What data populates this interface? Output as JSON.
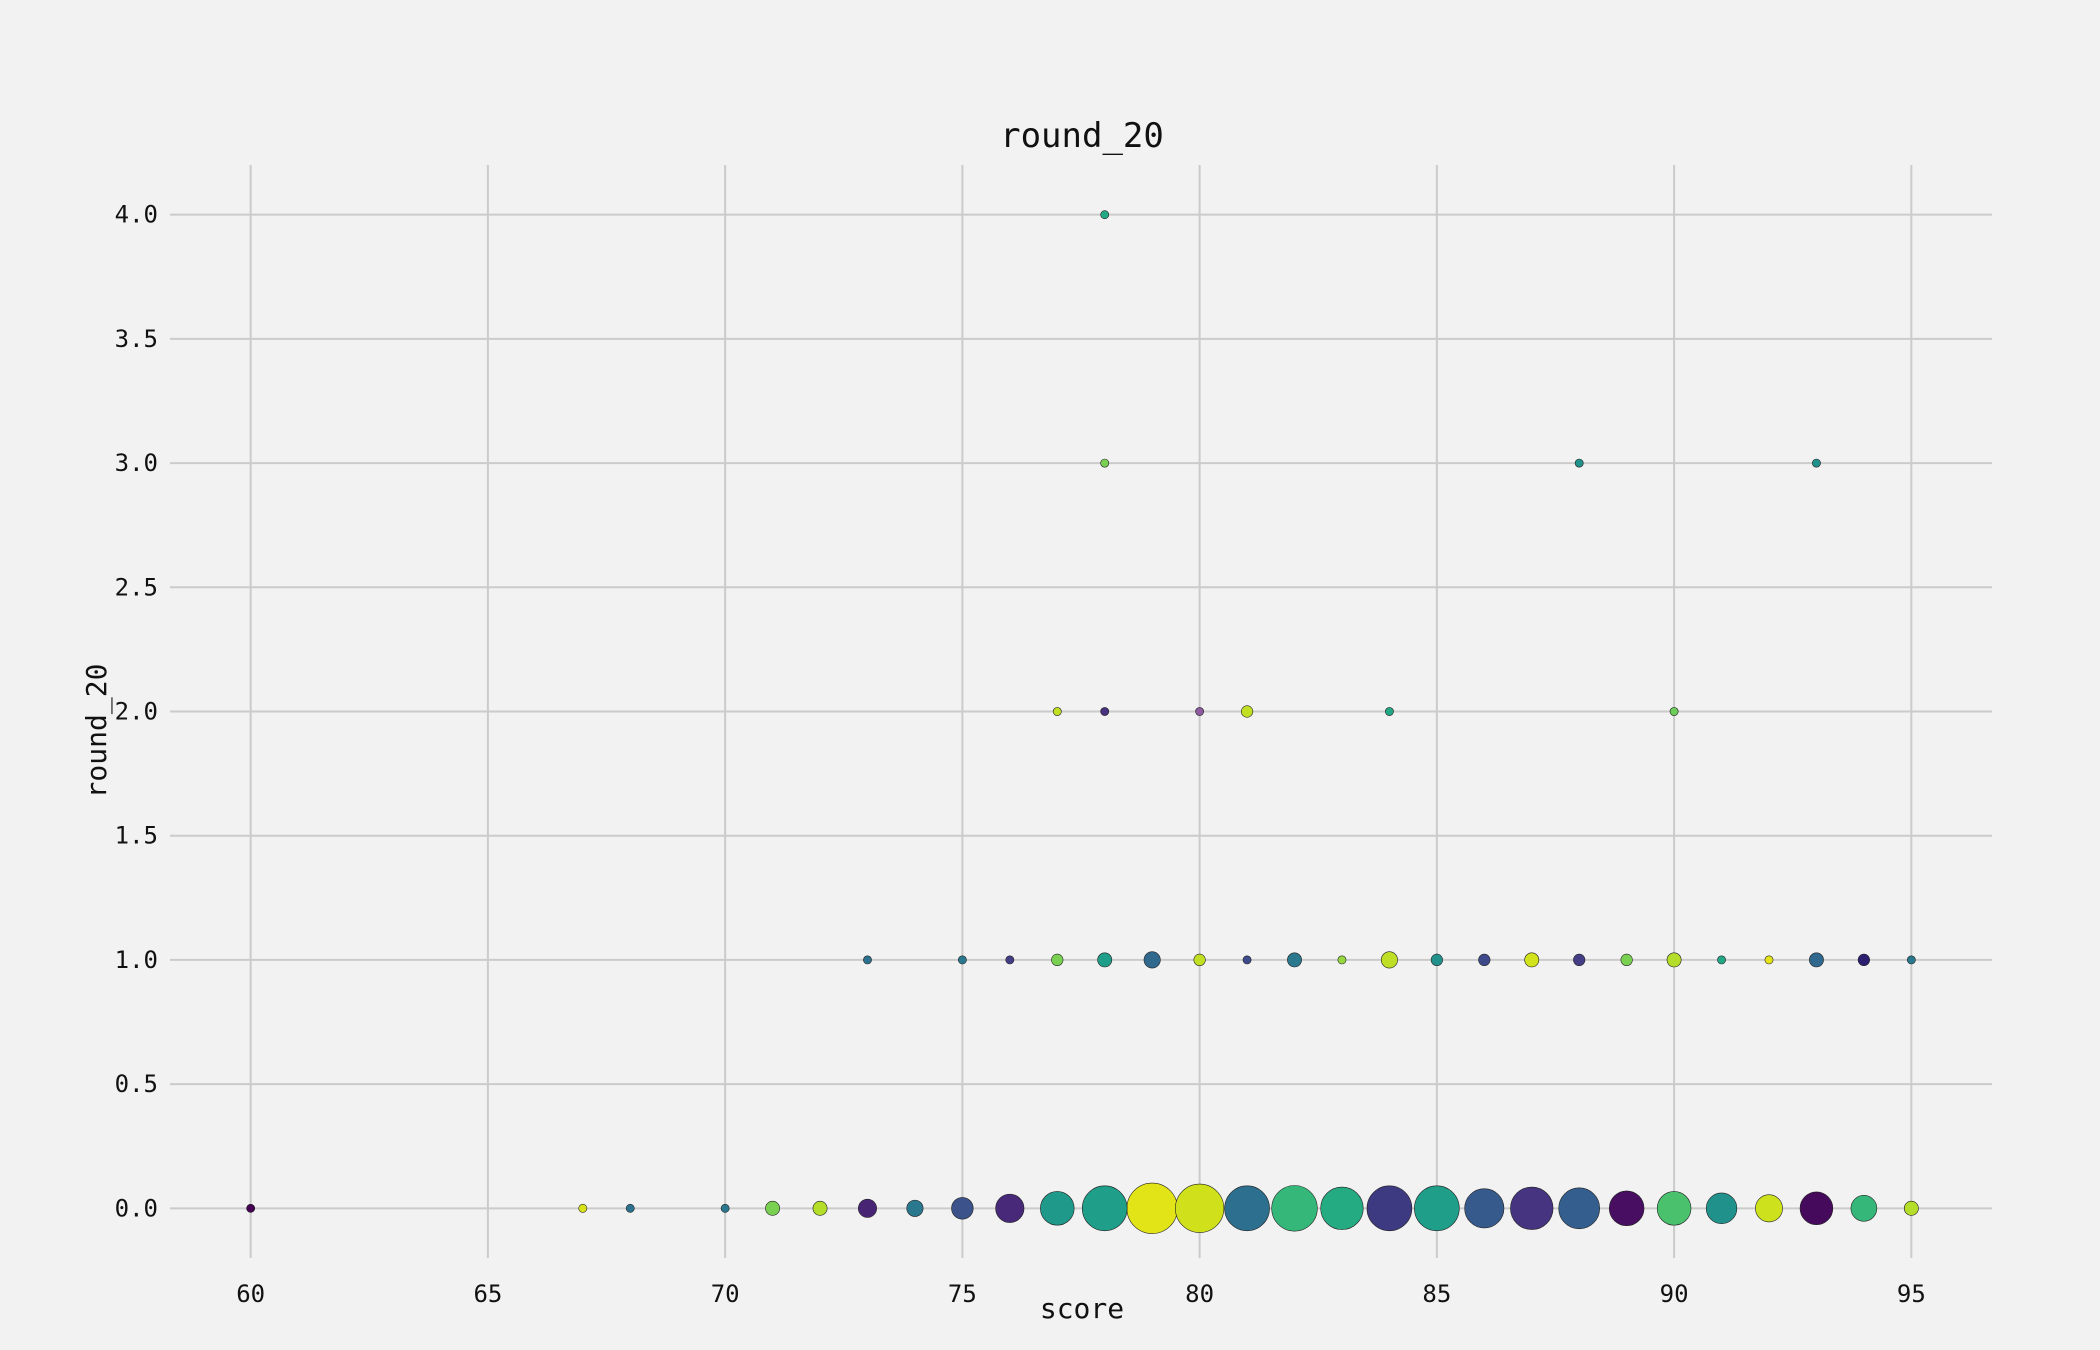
{
  "chart_data": {
    "type": "scatter",
    "title": "round_20",
    "xlabel": "score",
    "ylabel": "round_20",
    "xlim": [
      58.3,
      96.7
    ],
    "ylim": [
      -0.2,
      4.2
    ],
    "xticks": [
      60,
      65,
      70,
      75,
      80,
      85,
      90,
      95
    ],
    "yticks": [
      0.0,
      0.5,
      1.0,
      1.5,
      2.0,
      2.5,
      3.0,
      3.5,
      4.0
    ],
    "grid": true,
    "colormap": "viridis",
    "points": [
      {
        "x": 60,
        "y": 0,
        "size": 1,
        "color": "#440154"
      },
      {
        "x": 67,
        "y": 0,
        "size": 1,
        "color": "#d8e219"
      },
      {
        "x": 68,
        "y": 0,
        "size": 1,
        "color": "#2c728e"
      },
      {
        "x": 70,
        "y": 0,
        "size": 1,
        "color": "#2a788e"
      },
      {
        "x": 71,
        "y": 0,
        "size": 3,
        "color": "#7ad151"
      },
      {
        "x": 72,
        "y": 0,
        "size": 3,
        "color": "#b5de2b"
      },
      {
        "x": 73,
        "y": 0,
        "size": 5,
        "color": "#482475"
      },
      {
        "x": 74,
        "y": 0,
        "size": 4,
        "color": "#2a788e"
      },
      {
        "x": 75,
        "y": 0,
        "size": 7,
        "color": "#3b528b"
      },
      {
        "x": 76,
        "y": 0,
        "size": 12,
        "color": "#482878"
      },
      {
        "x": 77,
        "y": 0,
        "size": 17,
        "color": "#1f9a8a"
      },
      {
        "x": 78,
        "y": 0,
        "size": 30,
        "color": "#1f9e89"
      },
      {
        "x": 79,
        "y": 0,
        "size": 38,
        "color": "#e2e418"
      },
      {
        "x": 80,
        "y": 0,
        "size": 35,
        "color": "#d0e11c"
      },
      {
        "x": 81,
        "y": 0,
        "size": 30,
        "color": "#2c6f8e"
      },
      {
        "x": 82,
        "y": 0,
        "size": 31,
        "color": "#35b779"
      },
      {
        "x": 83,
        "y": 0,
        "size": 27,
        "color": "#25ab82"
      },
      {
        "x": 84,
        "y": 0,
        "size": 30,
        "color": "#3e3a81"
      },
      {
        "x": 85,
        "y": 0,
        "size": 30,
        "color": "#1f9e89"
      },
      {
        "x": 86,
        "y": 0,
        "size": 23,
        "color": "#375a8c"
      },
      {
        "x": 87,
        "y": 0,
        "size": 27,
        "color": "#463480"
      },
      {
        "x": 88,
        "y": 0,
        "size": 25,
        "color": "#345e8d"
      },
      {
        "x": 89,
        "y": 0,
        "size": 18,
        "color": "#470e61"
      },
      {
        "x": 90,
        "y": 0,
        "size": 17,
        "color": "#4ac16d"
      },
      {
        "x": 91,
        "y": 0,
        "size": 14,
        "color": "#21918c"
      },
      {
        "x": 92,
        "y": 0,
        "size": 11,
        "color": "#cde11d"
      },
      {
        "x": 93,
        "y": 0,
        "size": 16,
        "color": "#450a5c"
      },
      {
        "x": 94,
        "y": 0,
        "size": 10,
        "color": "#35b779"
      },
      {
        "x": 95,
        "y": 0,
        "size": 3,
        "color": "#b5de2b"
      },
      {
        "x": 73,
        "y": 1,
        "size": 1,
        "color": "#2c728e"
      },
      {
        "x": 75,
        "y": 1,
        "size": 1,
        "color": "#2a788e"
      },
      {
        "x": 76,
        "y": 1,
        "size": 1,
        "color": "#433e85"
      },
      {
        "x": 77,
        "y": 1,
        "size": 2,
        "color": "#7ad151"
      },
      {
        "x": 78,
        "y": 1,
        "size": 3,
        "color": "#1f9e89"
      },
      {
        "x": 79,
        "y": 1,
        "size": 4,
        "color": "#31688e"
      },
      {
        "x": 80,
        "y": 1,
        "size": 2,
        "color": "#c2df23"
      },
      {
        "x": 81,
        "y": 1,
        "size": 1,
        "color": "#3e4a89"
      },
      {
        "x": 82,
        "y": 1,
        "size": 3,
        "color": "#2a788e"
      },
      {
        "x": 83,
        "y": 1,
        "size": 1,
        "color": "#95d840"
      },
      {
        "x": 84,
        "y": 1,
        "size": 4,
        "color": "#bddf26"
      },
      {
        "x": 85,
        "y": 1,
        "size": 2,
        "color": "#21918c"
      },
      {
        "x": 86,
        "y": 1,
        "size": 2,
        "color": "#3e4a89"
      },
      {
        "x": 87,
        "y": 1,
        "size": 3,
        "color": "#d2e21b"
      },
      {
        "x": 88,
        "y": 1,
        "size": 2,
        "color": "#433e85"
      },
      {
        "x": 89,
        "y": 1,
        "size": 2,
        "color": "#7ad151"
      },
      {
        "x": 90,
        "y": 1,
        "size": 3,
        "color": "#b5de2b"
      },
      {
        "x": 91,
        "y": 1,
        "size": 1,
        "color": "#22a884"
      },
      {
        "x": 92,
        "y": 1,
        "size": 1,
        "color": "#e5e419"
      },
      {
        "x": 93,
        "y": 1,
        "size": 3,
        "color": "#31688e"
      },
      {
        "x": 94,
        "y": 1,
        "size": 2,
        "color": "#2c1f70"
      },
      {
        "x": 95,
        "y": 1,
        "size": 1,
        "color": "#2a788e"
      },
      {
        "x": 77,
        "y": 2,
        "size": 1,
        "color": "#c2df23"
      },
      {
        "x": 78,
        "y": 2,
        "size": 1,
        "color": "#46327e"
      },
      {
        "x": 80,
        "y": 2,
        "size": 1,
        "color": "#8f5aa0"
      },
      {
        "x": 81,
        "y": 2,
        "size": 2,
        "color": "#c2df23"
      },
      {
        "x": 84,
        "y": 2,
        "size": 1,
        "color": "#22a884"
      },
      {
        "x": 90,
        "y": 2,
        "size": 1,
        "color": "#6ccd5a"
      },
      {
        "x": 78,
        "y": 3,
        "size": 1,
        "color": "#7ad151"
      },
      {
        "x": 88,
        "y": 3,
        "size": 1,
        "color": "#21918c"
      },
      {
        "x": 93,
        "y": 3,
        "size": 1,
        "color": "#21918c"
      },
      {
        "x": 78,
        "y": 4,
        "size": 1,
        "color": "#22a884"
      }
    ]
  }
}
